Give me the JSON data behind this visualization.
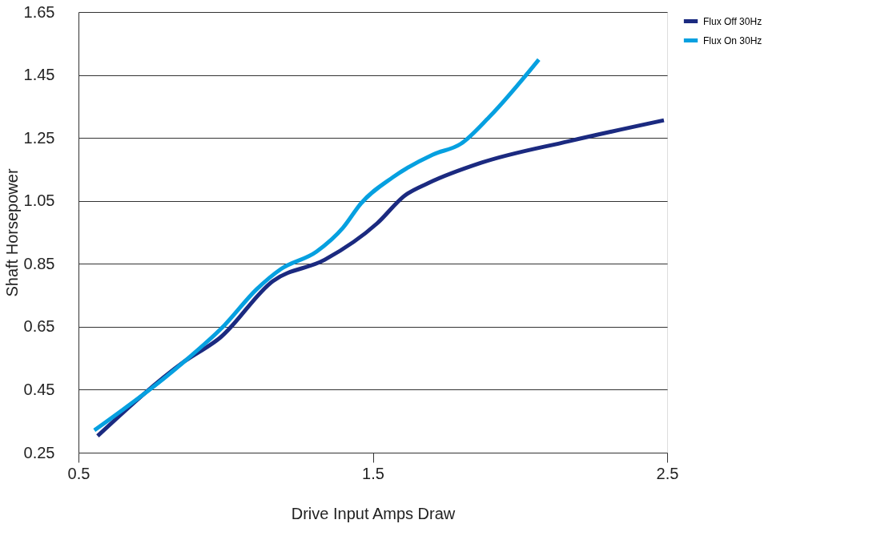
{
  "chart_data": {
    "type": "line",
    "xlabel": "Drive Input Amps Draw",
    "ylabel": "Shaft Horsepower",
    "xlim": [
      0.5,
      2.5
    ],
    "xticks": [
      0.5,
      1.5,
      2.5
    ],
    "ylim": [
      0.25,
      1.65
    ],
    "yticks": [
      0.25,
      0.45,
      0.65,
      0.85,
      1.05,
      1.25,
      1.45,
      1.65
    ],
    "grid": "y",
    "legend": "right",
    "line_style": "solid",
    "marker": "none",
    "series": [
      {
        "name": "Flux Off 30Hz",
        "color": "#1b2a80",
        "x": [
          0.565,
          0.86,
          0.982,
          1.16,
          1.337,
          1.514,
          1.609,
          1.69,
          1.868,
          2.168,
          2.489
        ],
        "values": [
          0.303,
          0.54,
          0.616,
          0.795,
          0.863,
          0.978,
          1.067,
          1.107,
          1.171,
          1.24,
          1.306
        ]
      },
      {
        "name": "Flux On 30Hz",
        "color": "#06a0e0",
        "x": [
          0.554,
          0.86,
          0.996,
          1.105,
          1.187,
          1.309,
          1.399,
          1.459,
          1.568,
          1.704,
          1.8,
          1.895,
          2.064
        ],
        "values": [
          0.321,
          0.54,
          0.655,
          0.769,
          0.833,
          0.889,
          0.965,
          1.041,
          1.125,
          1.197,
          1.232,
          1.316,
          1.499
        ]
      }
    ]
  }
}
